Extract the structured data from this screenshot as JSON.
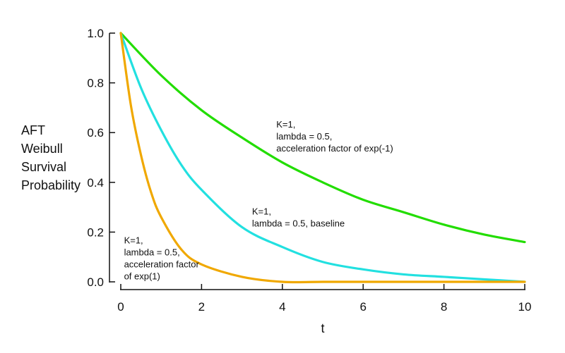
{
  "chart_data": {
    "type": "line",
    "xlabel": "t",
    "ylabel_lines": [
      "AFT",
      "Weibull",
      "Survival",
      "Probability"
    ],
    "xlim": [
      0,
      10
    ],
    "ylim": [
      0,
      1
    ],
    "x_ticks": [
      0,
      2,
      4,
      6,
      8,
      10
    ],
    "y_ticks": [
      0.0,
      0.2,
      0.4,
      0.6,
      0.8,
      1.0
    ],
    "x_tick_labels": [
      "0",
      "2",
      "4",
      "6",
      "8",
      "10"
    ],
    "y_tick_labels": [
      "0.0",
      "0.2",
      "0.4",
      "0.6",
      "0.8",
      "1.0"
    ],
    "grid": false,
    "series": [
      {
        "color": "#22dd00",
        "x": [
          0,
          1,
          2,
          3,
          4,
          5,
          6,
          7,
          8,
          9,
          10
        ],
        "y": [
          1.0,
          0.83,
          0.69,
          0.58,
          0.48,
          0.4,
          0.33,
          0.28,
          0.23,
          0.19,
          0.16
        ]
      },
      {
        "color": "#22e0e0",
        "x": [
          0,
          0.5,
          1,
          1.5,
          2,
          3,
          4,
          5,
          6,
          7,
          8,
          9,
          10
        ],
        "y": [
          1.0,
          0.78,
          0.61,
          0.47,
          0.37,
          0.22,
          0.14,
          0.08,
          0.05,
          0.03,
          0.02,
          0.01,
          0.0
        ]
      },
      {
        "color": "#f0a800",
        "x": [
          0,
          0.25,
          0.5,
          0.75,
          1,
          1.5,
          2,
          3,
          4,
          5,
          6,
          7,
          8,
          9,
          10
        ],
        "y": [
          1.0,
          0.71,
          0.51,
          0.36,
          0.26,
          0.13,
          0.07,
          0.02,
          0.0,
          0.0,
          0.0,
          0.0,
          0.0,
          0.0,
          0.0
        ]
      }
    ],
    "annotations": [
      {
        "lines": [
          "K=1,",
          "lambda = 0.5,",
          "acceleration factor of exp(-1)"
        ],
        "x": 3.85,
        "y": 0.62
      },
      {
        "lines": [
          "K=1,",
          "lambda = 0.5, baseline"
        ],
        "x": 3.25,
        "y": 0.27
      },
      {
        "lines": [
          "K=1,",
          "lambda = 0.5,",
          "acceleration factor",
          "of exp(1)"
        ],
        "x": 0.08,
        "y": 0.155
      }
    ]
  }
}
